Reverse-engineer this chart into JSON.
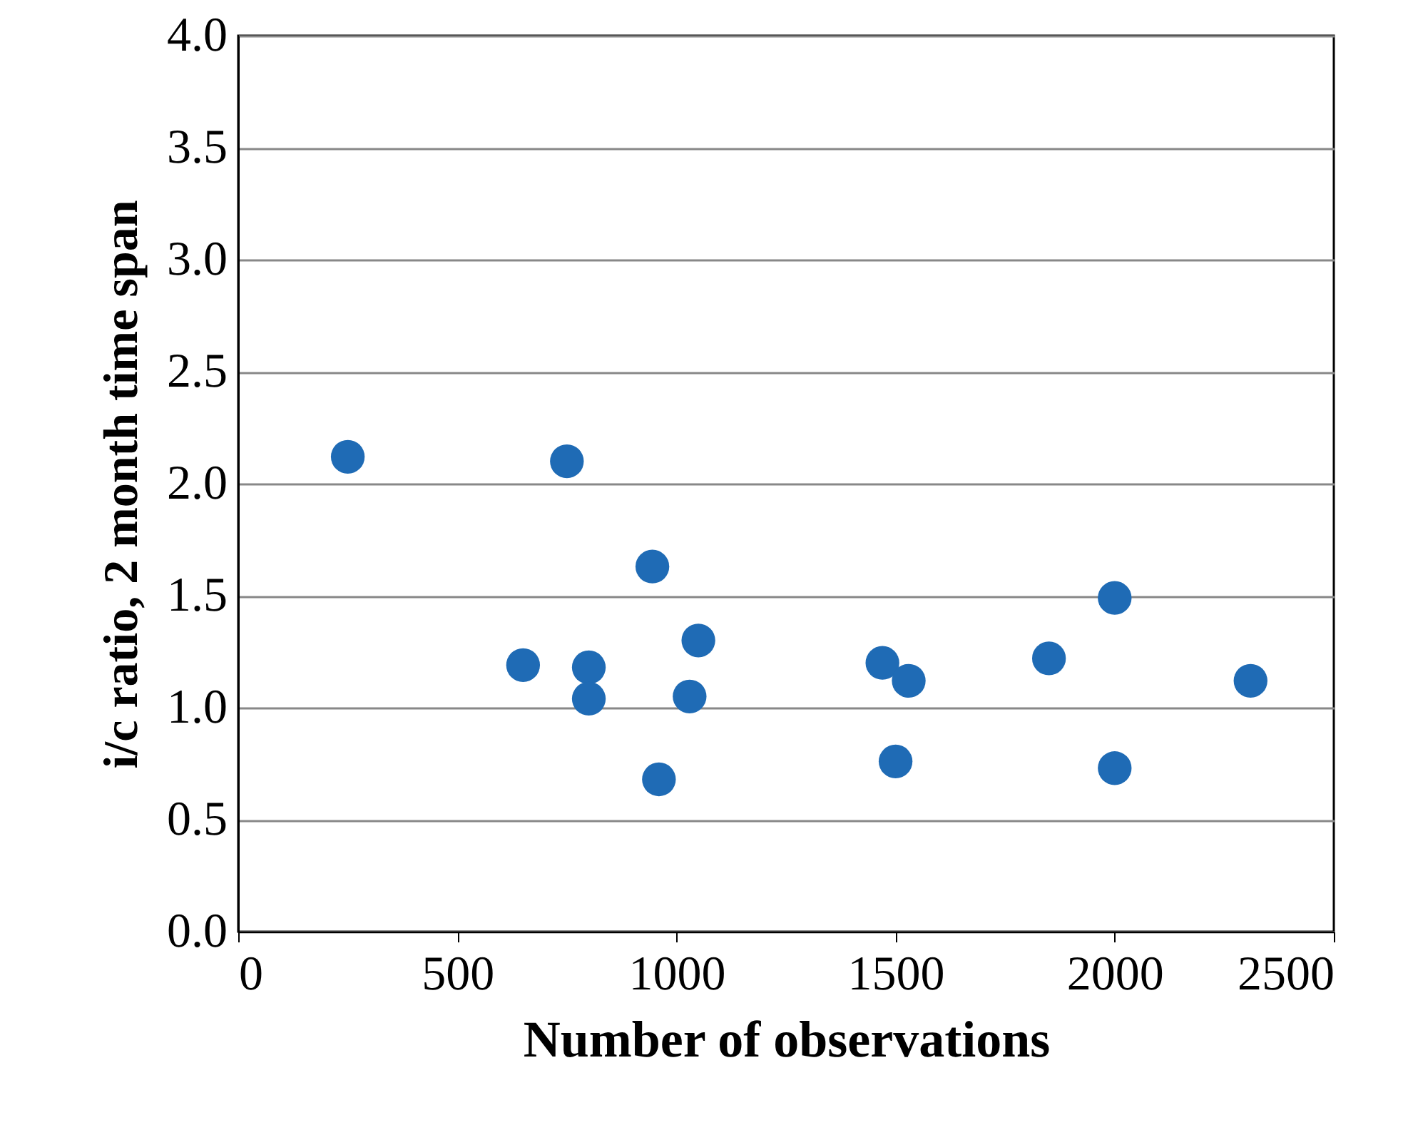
{
  "chart_data": {
    "type": "scatter",
    "xlabel": "Number of observations",
    "ylabel": "i/c ratio, 2 month time span",
    "x": [
      250,
      750,
      945,
      650,
      800,
      800,
      1050,
      1030,
      960,
      1470,
      1530,
      1500,
      1850,
      2000,
      2000,
      2310
    ],
    "series": [
      {
        "color": "#1f6bb5",
        "values": [
          2.12,
          2.1,
          1.63,
          1.19,
          1.18,
          1.04,
          1.3,
          1.05,
          0.68,
          1.2,
          1.12,
          0.76,
          1.22,
          1.49,
          0.73,
          1.12
        ]
      }
    ],
    "xlim": [
      0,
      2500
    ],
    "xticks": [
      0,
      500,
      1000,
      1500,
      2000,
      2500
    ],
    "ylim": [
      0,
      4
    ],
    "yticks": [
      {
        "value": 0,
        "label": "0.0"
      },
      {
        "value": 0.5,
        "label": "0.5"
      },
      {
        "value": 1,
        "label": "1.0"
      },
      {
        "value": 1.5,
        "label": "1.5"
      },
      {
        "value": 2,
        "label": "2.0"
      },
      {
        "value": 2.5,
        "label": "2.5"
      },
      {
        "value": 3,
        "label": "3.0"
      },
      {
        "value": 3.5,
        "label": "3.5"
      },
      {
        "value": 4,
        "label": "4.0"
      }
    ],
    "grid": "y",
    "marker": "circle",
    "legend": false
  }
}
